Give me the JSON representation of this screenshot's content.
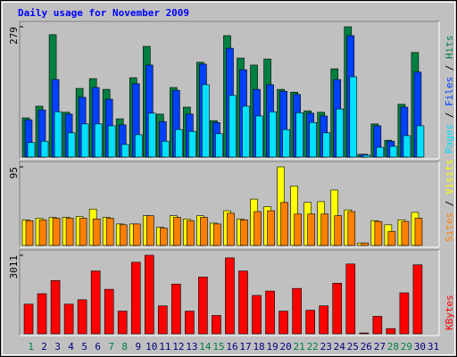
{
  "chart_data": [
    {
      "type": "bar",
      "title": "Daily usage for November 2009",
      "ylim": [
        0,
        279
      ],
      "yticks": [
        279
      ],
      "series": [
        {
          "name": "Hits",
          "color": "#008040",
          "values": [
            84,
            109,
            262,
            96,
            147,
            168,
            145,
            82,
            170,
            237,
            92,
            149,
            107,
            203,
            78,
            260,
            212,
            197,
            210,
            145,
            139,
            99,
            96,
            189,
            279,
            6,
            71,
            36,
            113,
            224,
            0
          ]
        },
        {
          "name": "Files",
          "color": "#0040ff",
          "values": [
            80,
            101,
            166,
            92,
            128,
            149,
            124,
            69,
            157,
            197,
            76,
            143,
            92,
            199,
            74,
            233,
            187,
            145,
            155,
            141,
            134,
            94,
            88,
            166,
            260,
            6,
            67,
            34,
            107,
            182,
            0
          ]
        },
        {
          "name": "Pages",
          "color": "#00e0ff",
          "values": [
            31,
            34,
            97,
            52,
            71,
            71,
            67,
            27,
            48,
            94,
            34,
            59,
            55,
            155,
            50,
            132,
            109,
            88,
            97,
            59,
            95,
            74,
            52,
            103,
            172,
            4,
            21,
            23,
            46,
            67,
            0
          ]
        }
      ]
    },
    {
      "type": "bar",
      "ylim": [
        0,
        95
      ],
      "yticks": [
        95
      ],
      "series": [
        {
          "name": "Visits",
          "color": "#ffff00",
          "values": [
            31,
            33,
            34,
            34,
            35,
            44,
            34,
            26,
            26,
            36,
            22,
            36,
            32,
            36,
            27,
            42,
            32,
            56,
            47,
            95,
            72,
            52,
            53,
            67,
            43,
            3,
            30,
            25,
            31,
            40,
            0
          ]
        },
        {
          "name": "Sites",
          "color": "#ff8000",
          "values": [
            30,
            31,
            33,
            33,
            33,
            32,
            33,
            25,
            26,
            36,
            21,
            34,
            30,
            34,
            26,
            39,
            31,
            41,
            42,
            52,
            38,
            38,
            38,
            36,
            41,
            3,
            29,
            17,
            29,
            33,
            0
          ]
        }
      ]
    },
    {
      "type": "bar",
      "ylim": [
        0,
        3011
      ],
      "yticks": [
        3011
      ],
      "categories": [
        "1",
        "2",
        "3",
        "4",
        "5",
        "6",
        "7",
        "8",
        "9",
        "10",
        "11",
        "12",
        "13",
        "14",
        "15",
        "16",
        "17",
        "18",
        "19",
        "20",
        "21",
        "22",
        "23",
        "24",
        "25",
        "26",
        "27",
        "28",
        "29",
        "30",
        "31"
      ],
      "category_color": "#000080",
      "highlight_color": "#008040",
      "highlight": [
        0,
        6,
        7,
        13,
        14,
        20,
        21,
        27,
        28
      ],
      "series": [
        {
          "name": "KBytes",
          "color": "#ff0000",
          "values": [
            1137,
            1539,
            2041,
            1137,
            1305,
            2409,
            1706,
            870,
            2743,
            3011,
            1071,
            1907,
            870,
            2175,
            703,
            2911,
            2409,
            1472,
            1639,
            870,
            1740,
            903,
            1071,
            1940,
            2676,
            33,
            669,
            201,
            1572,
            2643,
            0
          ]
        }
      ]
    }
  ]
}
